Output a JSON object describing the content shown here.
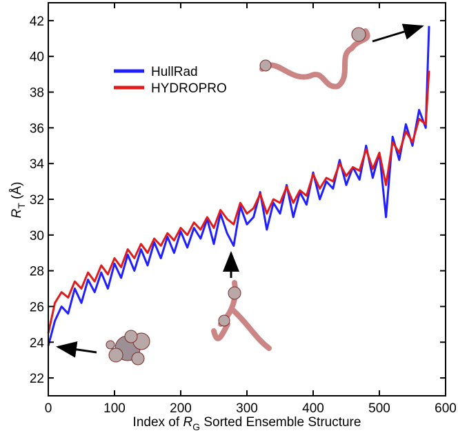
{
  "chart_data": {
    "type": "line",
    "x_label": {
      "before": "Index of ",
      "main": "R",
      "sub": "G",
      "after": " Sorted Ensemble Structure"
    },
    "y_label": {
      "main": "R",
      "sub": "T",
      "after": " (Å)"
    },
    "x": [
      0,
      10,
      20,
      30,
      40,
      50,
      60,
      70,
      80,
      90,
      100,
      110,
      120,
      130,
      140,
      150,
      160,
      170,
      180,
      190,
      200,
      210,
      220,
      230,
      240,
      250,
      260,
      270,
      280,
      290,
      300,
      310,
      320,
      330,
      340,
      350,
      360,
      370,
      380,
      390,
      400,
      410,
      420,
      430,
      440,
      450,
      460,
      470,
      480,
      490,
      500,
      510,
      520,
      530,
      540,
      550,
      560,
      570,
      575
    ],
    "series": [
      {
        "name": "HullRad",
        "color": "#1f1fff",
        "values": [
          23.8,
          25.2,
          26.0,
          25.6,
          27.0,
          26.2,
          27.5,
          26.8,
          27.9,
          27.0,
          28.4,
          27.6,
          28.9,
          28.0,
          29.2,
          28.3,
          29.6,
          28.7,
          29.9,
          29.0,
          30.2,
          29.3,
          30.4,
          29.8,
          30.9,
          29.5,
          31.2,
          30.1,
          29.4,
          31.6,
          30.6,
          31.0,
          32.4,
          30.3,
          31.8,
          31.2,
          32.8,
          31.0,
          32.4,
          31.7,
          33.5,
          32.0,
          33.0,
          32.6,
          34.2,
          32.8,
          33.8,
          33.1,
          35.0,
          33.2,
          34.6,
          31.0,
          35.5,
          34.2,
          36.2,
          35.0,
          37.0,
          36.0,
          41.7
        ]
      },
      {
        "name": "HYDROPRO",
        "color": "#e01b1b",
        "values": [
          24.5,
          26.2,
          26.8,
          26.5,
          27.4,
          27.0,
          27.9,
          27.4,
          28.3,
          27.8,
          28.7,
          28.2,
          29.2,
          28.7,
          29.5,
          29.0,
          29.8,
          29.4,
          30.1,
          29.7,
          30.4,
          30.0,
          30.7,
          30.3,
          31.0,
          30.4,
          31.4,
          30.9,
          30.6,
          31.8,
          31.2,
          31.5,
          32.3,
          31.2,
          32.0,
          31.8,
          32.7,
          31.8,
          32.5,
          32.2,
          33.4,
          32.6,
          33.2,
          33.0,
          34.0,
          33.3,
          33.8,
          33.6,
          34.8,
          33.7,
          34.6,
          32.8,
          35.2,
          34.6,
          35.8,
          35.2,
          36.5,
          36.2,
          39.2
        ]
      }
    ],
    "xlim": [
      0,
      600
    ],
    "xticks": [
      0,
      100,
      200,
      300,
      400,
      500,
      600
    ],
    "ylim": [
      21,
      43
    ],
    "yticks": [
      22,
      24,
      26,
      28,
      30,
      32,
      34,
      36,
      38,
      40,
      42
    ],
    "legend": "upper-left"
  }
}
